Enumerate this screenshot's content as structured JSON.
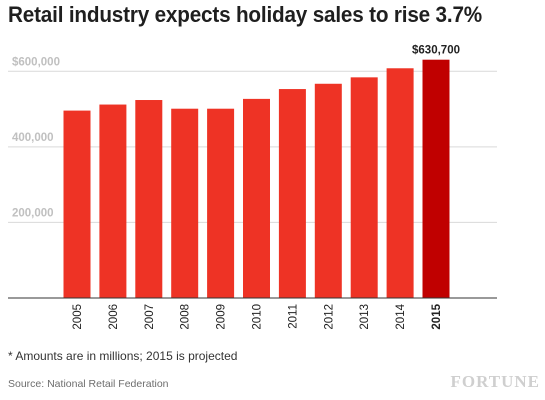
{
  "header": {
    "title": "Retail industry expects holiday sales to rise 3.7%"
  },
  "footer": {
    "footnote": "* Amounts are in millions; 2015 is projected",
    "source": "Source: National Retail Federation",
    "brand": "FORTUNE"
  },
  "chart_data": {
    "type": "bar",
    "title": "Retail industry expects holiday sales to rise 3.7%",
    "xlabel": "",
    "ylabel": "",
    "categories": [
      "2005",
      "2006",
      "2007",
      "2008",
      "2009",
      "2010",
      "2011",
      "2012",
      "2013",
      "2014",
      "2015"
    ],
    "values": [
      496000,
      512000,
      524000,
      501000,
      501000,
      527000,
      553000,
      567000,
      584000,
      608000,
      630700
    ],
    "highlight_index": 10,
    "data_labels": [
      {
        "index": 10,
        "text": "$630,700"
      }
    ],
    "ylim": [
      0,
      700000
    ],
    "yticks": [
      {
        "value": 200000,
        "label": "200,000"
      },
      {
        "value": 400000,
        "label": "400,000"
      },
      {
        "value": 600000,
        "label": "$600,000"
      }
    ],
    "grid": true,
    "colors": {
      "bar": "#ee3325",
      "highlight": "#c00000",
      "grid": "#d9d9d9",
      "axis": "#333333"
    }
  }
}
